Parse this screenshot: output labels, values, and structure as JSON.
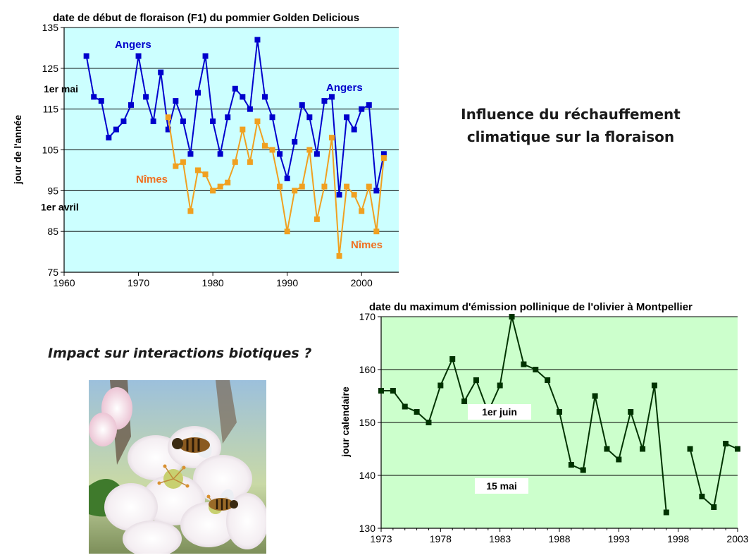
{
  "slide": {
    "title_line1": "Influence du réchauffement",
    "title_line2": "climatique sur la floraison",
    "subtitle": "Impact sur interactions biotiques ?"
  },
  "chart_data": [
    {
      "type": "line",
      "title": "date de début de floraison (F1) du pommier Golden Delicious",
      "xlabel": "",
      "ylabel": "jour de l'année",
      "xlim": [
        1960,
        2005
      ],
      "ylim": [
        75,
        135
      ],
      "xticks": [
        1960,
        1970,
        1980,
        1990,
        2000
      ],
      "yticks": [
        75,
        85,
        95,
        105,
        115,
        125,
        135
      ],
      "grid": "horizontal",
      "background": "#ccffff",
      "annotations": [
        {
          "text": "1er mai",
          "y": 120
        },
        {
          "text": "1er avril",
          "y": 91
        }
      ],
      "series": [
        {
          "name": "Angers",
          "color": "#0000cc",
          "label_color": "#0000cc",
          "marker": "square",
          "x": [
            1963,
            1964,
            1965,
            1966,
            1967,
            1968,
            1969,
            1970,
            1971,
            1972,
            1973,
            1974,
            1975,
            1976,
            1977,
            1978,
            1979,
            1980,
            1981,
            1982,
            1983,
            1984,
            1985,
            1986,
            1987,
            1988,
            1989,
            1990,
            1991,
            1992,
            1993,
            1994,
            1995,
            1996,
            1997,
            1998,
            1999,
            2000,
            2001,
            2002,
            2003
          ],
          "values": [
            128,
            118,
            117,
            108,
            110,
            112,
            116,
            128,
            118,
            112,
            124,
            110,
            117,
            112,
            104,
            119,
            128,
            112,
            104,
            113,
            120,
            118,
            115,
            132,
            118,
            113,
            104,
            98,
            107,
            116,
            113,
            104,
            117,
            118,
            94,
            113,
            110,
            115,
            116,
            95,
            104
          ]
        },
        {
          "name": "Nîmes",
          "color": "#f0a020",
          "label_color": "#f07020",
          "marker": "square",
          "x": [
            1974,
            1975,
            1976,
            1977,
            1978,
            1979,
            1980,
            1981,
            1982,
            1983,
            1984,
            1985,
            1986,
            1987,
            1988,
            1989,
            1990,
            1991,
            1992,
            1993,
            1994,
            1995,
            1996,
            1997,
            1998,
            1999,
            2000,
            2001,
            2002,
            2003
          ],
          "values": [
            113,
            101,
            102,
            90,
            100,
            99,
            95,
            96,
            97,
            102,
            110,
            102,
            112,
            106,
            105,
            96,
            85,
            95,
            96,
            105,
            88,
            96,
            108,
            79,
            96,
            94,
            90,
            96,
            85,
            103
          ]
        }
      ]
    },
    {
      "type": "line",
      "title": "date du maximum d'émission pollinique de l'olivier à Montpellier",
      "xlabel": "",
      "ylabel": "jour calendaire",
      "xlim": [
        1973,
        2003
      ],
      "ylim": [
        130,
        170
      ],
      "xticks": [
        1973,
        1978,
        1983,
        1988,
        1993,
        1998,
        2003
      ],
      "yticks": [
        130,
        140,
        150,
        160,
        170
      ],
      "grid": "horizontal",
      "background": "#ccffcc",
      "annotations": [
        {
          "text": "1er juin",
          "y": 152
        },
        {
          "text": "15 mai",
          "y": 138
        }
      ],
      "series": [
        {
          "color": "#003300",
          "marker": "square",
          "segments": [
            {
              "x": [
                1973,
                1974,
                1975,
                1976,
                1977,
                1978,
                1979,
                1980,
                1981,
                1982,
                1983,
                1984,
                1985,
                1986,
                1987,
                1988,
                1989,
                1990,
                1991,
                1992,
                1993,
                1994,
                1995,
                1996,
                1997
              ],
              "values": [
                156,
                156,
                153,
                152,
                150,
                157,
                162,
                154,
                158,
                152,
                157,
                170,
                161,
                160,
                158,
                152,
                142,
                141,
                155,
                145,
                143,
                152,
                145,
                157,
                133
              ]
            },
            {
              "x": [
                1999,
                2000,
                2001,
                2002,
                2003
              ],
              "values": [
                145,
                136,
                134,
                146,
                145
              ]
            }
          ]
        }
      ]
    }
  ]
}
